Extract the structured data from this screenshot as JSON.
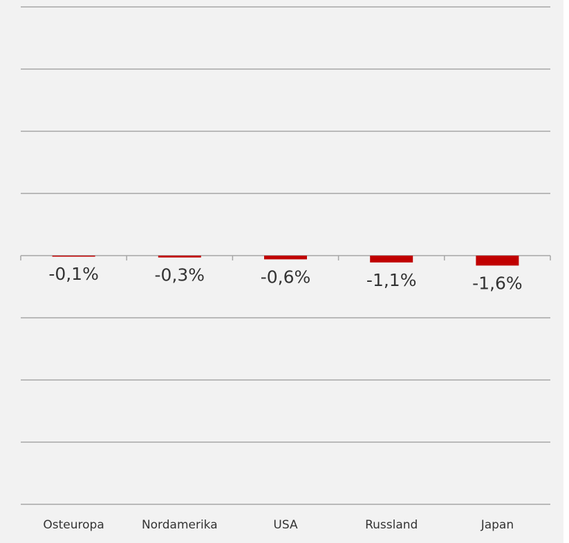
{
  "chart_data": {
    "type": "bar",
    "categories": [
      "Osteuropa",
      "Nordamerika",
      "USA",
      "Russland",
      "Japan"
    ],
    "values": [
      -0.1,
      -0.3,
      -0.6,
      -1.1,
      -1.6
    ],
    "value_labels": [
      "-0,1%",
      "-0,3%",
      "-0,6%",
      "-1,1%",
      "-1,6%"
    ],
    "color": "#c00000",
    "ylim": [
      -40,
      40
    ],
    "yticks": [
      -40,
      -30,
      -20,
      -10,
      0,
      10,
      20,
      30,
      40
    ],
    "grid": true
  }
}
